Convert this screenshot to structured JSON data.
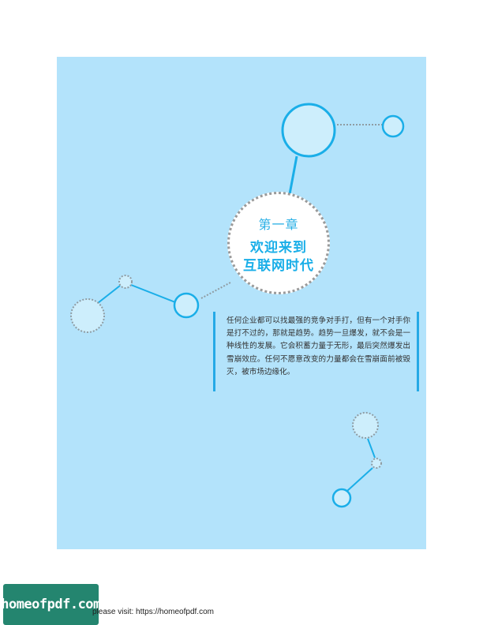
{
  "chapter": {
    "number": "第一章",
    "title_line1": "欢迎来到",
    "title_line2": "互联网时代"
  },
  "intro": {
    "text": "任何企业都可以找最强的竞争对手打，但有一个对手你是打不过的，那就是趋势。趋势一旦爆发，就不会是一种线性的发展。它会积蓄力量于无形，最后突然爆发出雪崩效应。任何不愿意改变的力量都会在雪崩面前被毁灭，被市场边缘化。"
  },
  "footer": {
    "logo_text": "homeofpdf.com",
    "prefix": "please visit: ",
    "link": "https://homeofpdf.com"
  },
  "colors": {
    "panel": "#b3e3fb",
    "accent": "#1aaee8",
    "bubble_fill": "#cdeefc",
    "dotted": "#8f9ca3"
  }
}
